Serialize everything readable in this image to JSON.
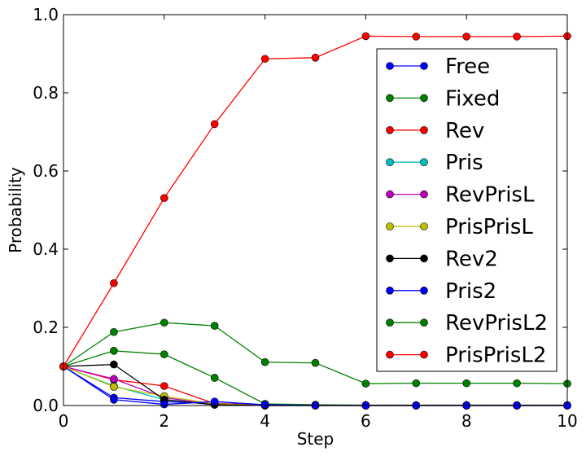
{
  "chart_data": {
    "type": "line",
    "title": "",
    "xlabel": "Step",
    "ylabel": "Probability",
    "xlim": [
      0,
      10
    ],
    "ylim": [
      0,
      1.0
    ],
    "xticks": [
      "0",
      "2",
      "4",
      "6",
      "8",
      "10"
    ],
    "yticks": [
      "0.0",
      "0.2",
      "0.4",
      "0.6",
      "0.8",
      "1.0"
    ],
    "grid": false,
    "legend_position": "right",
    "series": [
      {
        "name": "Free",
        "color": "#0000ff",
        "x": [
          0,
          1,
          2,
          3,
          4,
          5,
          6,
          7,
          8,
          9,
          10
        ],
        "values": [
          0.1,
          0.02,
          0.01,
          0.005,
          0.002,
          0.001,
          0.0,
          0.0,
          0.0,
          0.0,
          0.0
        ]
      },
      {
        "name": "Fixed",
        "color": "#008000",
        "x": [
          0,
          1,
          2,
          3,
          4,
          5,
          6,
          7,
          8,
          9,
          10
        ],
        "values": [
          0.1,
          0.14,
          0.131,
          0.071,
          0.004,
          0.002,
          0.001,
          0.001,
          0.001,
          0.001,
          0.001
        ]
      },
      {
        "name": "Rev",
        "color": "#ff0000",
        "x": [
          0,
          1,
          2,
          3,
          4,
          5,
          6,
          7,
          8,
          9,
          10
        ],
        "values": [
          0.1,
          0.066,
          0.05,
          0.005,
          0.001,
          0.0,
          0.0,
          0.0,
          0.0,
          0.0,
          0.0
        ]
      },
      {
        "name": "Pris",
        "color": "#00bfbf",
        "x": [
          0,
          1,
          2,
          3,
          4,
          5,
          6,
          7,
          8,
          9,
          10
        ],
        "values": [
          0.1,
          0.05,
          0.015,
          0.002,
          0.0,
          0.0,
          0.0,
          0.0,
          0.0,
          0.0,
          0.0
        ]
      },
      {
        "name": "RevPrisL",
        "color": "#bf00bf",
        "x": [
          0,
          1,
          2,
          3,
          4,
          5,
          6,
          7,
          8,
          9,
          10
        ],
        "values": [
          0.1,
          0.068,
          0.02,
          0.003,
          0.0,
          0.0,
          0.0,
          0.0,
          0.0,
          0.0,
          0.0
        ]
      },
      {
        "name": "PrisPrisL",
        "color": "#bfbf00",
        "x": [
          0,
          1,
          2,
          3,
          4,
          5,
          6,
          7,
          8,
          9,
          10
        ],
        "values": [
          0.1,
          0.048,
          0.024,
          0.004,
          0.0,
          0.0,
          0.0,
          0.0,
          0.0,
          0.0,
          0.0
        ]
      },
      {
        "name": "Rev2",
        "color": "#000000",
        "x": [
          0,
          1,
          2,
          3,
          4,
          5,
          6,
          7,
          8,
          9,
          10
        ],
        "values": [
          0.1,
          0.105,
          0.015,
          0.002,
          0.0,
          0.0,
          0.0,
          0.0,
          0.0,
          0.0,
          0.0
        ]
      },
      {
        "name": "Pris2",
        "color": "#0000ff",
        "x": [
          0,
          1,
          2,
          3,
          4,
          5,
          6,
          7,
          8,
          9,
          10
        ],
        "values": [
          0.1,
          0.015,
          0.003,
          0.01,
          0.002,
          0.0,
          0.0,
          0.0,
          0.0,
          0.0,
          0.0
        ]
      },
      {
        "name": "RevPrisL2",
        "color": "#008000",
        "x": [
          0,
          1,
          2,
          3,
          4,
          5,
          6,
          7,
          8,
          9,
          10
        ],
        "values": [
          0.1,
          0.188,
          0.212,
          0.204,
          0.111,
          0.109,
          0.056,
          0.057,
          0.057,
          0.057,
          0.056
        ]
      },
      {
        "name": "PrisPrisL2",
        "color": "#ff0000",
        "x": [
          0,
          1,
          2,
          3,
          4,
          5,
          6,
          7,
          8,
          9,
          10
        ],
        "values": [
          0.1,
          0.313,
          0.531,
          0.72,
          0.887,
          0.89,
          0.945,
          0.944,
          0.944,
          0.944,
          0.945
        ]
      }
    ]
  }
}
